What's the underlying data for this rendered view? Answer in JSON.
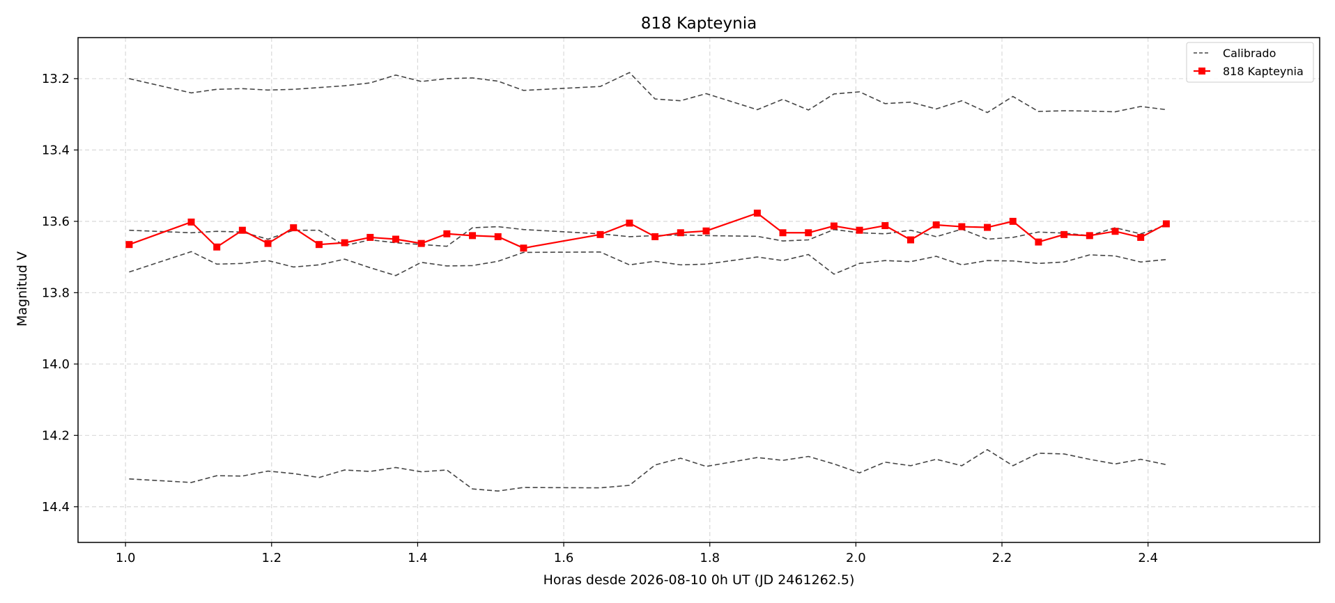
{
  "chart_data": {
    "type": "line",
    "title": "818 Kapteynia",
    "xlabel": "Horas desde 2026-08-10 0h UT (JD 2461262.5)",
    "ylabel": "Magnitud V",
    "xlim": [
      0.935,
      2.635
    ],
    "ylim": [
      14.5,
      13.085
    ],
    "y_inverted": true,
    "xticks": [
      1.0,
      1.2,
      1.4,
      1.6,
      1.8,
      2.0,
      2.2,
      2.4
    ],
    "xtick_labels": [
      "1.0",
      "1.2",
      "1.4",
      "1.6",
      "1.8",
      "2.0",
      "2.2",
      "2.4"
    ],
    "yticks": [
      13.2,
      13.4,
      13.6,
      13.8,
      14.0,
      14.2,
      14.4
    ],
    "ytick_labels": [
      "13.2",
      "13.4",
      "13.6",
      "13.8",
      "14.0",
      "14.2",
      "14.4"
    ],
    "grid": true,
    "legend_position": "top-right",
    "legend": [
      "Calibrado",
      "818 Kapteynia"
    ],
    "x": [
      1.005,
      1.09,
      1.125,
      1.16,
      1.195,
      1.23,
      1.265,
      1.3,
      1.335,
      1.37,
      1.405,
      1.44,
      1.475,
      1.51,
      1.545,
      1.65,
      1.69,
      1.725,
      1.76,
      1.795,
      1.865,
      1.9,
      1.935,
      1.97,
      2.005,
      2.04,
      2.075,
      2.11,
      2.145,
      2.18,
      2.215,
      2.25,
      2.285,
      2.32,
      2.355,
      2.39,
      2.425
    ],
    "series": [
      {
        "name": "818 Kapteynia",
        "color": "#ff0000",
        "style": "solid",
        "marker": "square",
        "values": [
          13.665,
          13.602,
          13.672,
          13.625,
          13.662,
          13.618,
          13.665,
          13.66,
          13.645,
          13.65,
          13.662,
          13.635,
          13.64,
          13.643,
          13.675,
          13.637,
          13.605,
          13.643,
          13.632,
          13.627,
          13.577,
          13.632,
          13.632,
          13.613,
          13.625,
          13.612,
          13.652,
          13.61,
          13.615,
          13.617,
          13.6,
          13.658,
          13.637,
          13.64,
          13.628,
          13.645,
          13.607
        ]
      },
      {
        "name": "Calibrado",
        "color": "#444444",
        "style": "dashed",
        "values": [
          13.2,
          13.24,
          13.23,
          13.228,
          13.232,
          13.23,
          13.225,
          13.22,
          13.212,
          13.19,
          13.208,
          13.2,
          13.198,
          13.207,
          13.233,
          13.222,
          13.183,
          13.257,
          13.262,
          13.242,
          13.287,
          13.258,
          13.288,
          13.243,
          13.237,
          13.27,
          13.266,
          13.285,
          13.262,
          13.295,
          13.25,
          13.292,
          13.29,
          13.291,
          13.293,
          13.278,
          13.287
        ]
      },
      {
        "name": "Calibrado",
        "color": "#444444",
        "style": "dashed",
        "values": [
          13.625,
          13.632,
          13.628,
          13.63,
          13.65,
          13.625,
          13.625,
          13.668,
          13.652,
          13.66,
          13.665,
          13.67,
          13.618,
          13.615,
          13.623,
          13.635,
          13.643,
          13.64,
          13.638,
          13.64,
          13.642,
          13.655,
          13.652,
          13.623,
          13.632,
          13.635,
          13.625,
          13.643,
          13.622,
          13.65,
          13.645,
          13.63,
          13.633,
          13.64,
          13.618,
          13.635,
          13.612
        ]
      },
      {
        "name": "Calibrado",
        "color": "#444444",
        "style": "dashed",
        "values": [
          13.742,
          13.685,
          13.72,
          13.718,
          13.71,
          13.728,
          13.722,
          13.706,
          13.73,
          13.752,
          13.715,
          13.725,
          13.724,
          13.712,
          13.687,
          13.686,
          13.722,
          13.712,
          13.722,
          13.72,
          13.7,
          13.71,
          13.693,
          13.748,
          13.718,
          13.71,
          13.713,
          13.698,
          13.722,
          13.71,
          13.711,
          13.718,
          13.714,
          13.694,
          13.697,
          13.714,
          13.707
        ]
      },
      {
        "name": "Calibrado",
        "color": "#444444",
        "style": "dashed",
        "values": [
          14.322,
          14.332,
          14.313,
          14.314,
          14.3,
          14.307,
          14.318,
          14.297,
          14.301,
          14.29,
          14.302,
          14.297,
          14.35,
          14.356,
          14.346,
          14.347,
          14.34,
          14.283,
          14.264,
          14.287,
          14.262,
          14.27,
          14.259,
          14.28,
          14.305,
          14.275,
          14.285,
          14.267,
          14.285,
          14.24,
          14.285,
          14.25,
          14.252,
          14.267,
          14.28,
          14.267,
          14.282
        ]
      }
    ]
  }
}
